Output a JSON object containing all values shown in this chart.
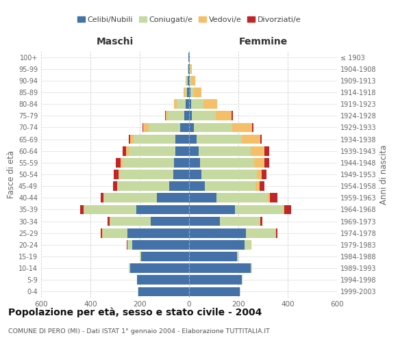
{
  "age_groups": [
    "0-4",
    "5-9",
    "10-14",
    "15-19",
    "20-24",
    "25-29",
    "30-34",
    "35-39",
    "40-44",
    "45-49",
    "50-54",
    "55-59",
    "60-64",
    "65-69",
    "70-74",
    "75-79",
    "80-84",
    "85-89",
    "90-94",
    "95-99",
    "100+"
  ],
  "birth_years": [
    "1999-2003",
    "1994-1998",
    "1989-1993",
    "1984-1988",
    "1979-1983",
    "1974-1978",
    "1969-1973",
    "1964-1968",
    "1959-1963",
    "1954-1958",
    "1949-1953",
    "1944-1948",
    "1939-1943",
    "1934-1938",
    "1929-1933",
    "1924-1928",
    "1919-1923",
    "1914-1918",
    "1909-1913",
    "1904-1908",
    "≤ 1903"
  ],
  "colors": {
    "celibi": "#4472a8",
    "coniugati": "#c5d9a0",
    "vedovi": "#f5bf6a",
    "divorziati": "#c0252a"
  },
  "maschi": {
    "celibi": [
      205,
      210,
      240,
      195,
      230,
      250,
      155,
      215,
      130,
      80,
      65,
      60,
      55,
      55,
      35,
      20,
      15,
      8,
      5,
      3,
      2
    ],
    "coniugati": [
      2,
      2,
      5,
      5,
      20,
      100,
      165,
      210,
      215,
      210,
      215,
      210,
      190,
      170,
      130,
      65,
      35,
      10,
      5,
      2,
      0
    ],
    "vedovi": [
      0,
      0,
      0,
      0,
      0,
      2,
      2,
      2,
      2,
      3,
      5,
      8,
      10,
      15,
      20,
      10,
      10,
      5,
      3,
      0,
      0
    ],
    "divorziati": [
      0,
      0,
      0,
      0,
      2,
      5,
      8,
      15,
      10,
      15,
      20,
      20,
      15,
      5,
      3,
      2,
      2,
      0,
      0,
      0,
      0
    ]
  },
  "femmine": {
    "celibi": [
      205,
      215,
      250,
      195,
      225,
      230,
      125,
      185,
      110,
      65,
      50,
      45,
      40,
      30,
      20,
      12,
      8,
      5,
      4,
      3,
      2
    ],
    "coniugati": [
      2,
      2,
      5,
      5,
      25,
      120,
      160,
      195,
      210,
      205,
      225,
      220,
      210,
      185,
      155,
      95,
      50,
      15,
      5,
      2,
      0
    ],
    "vedovi": [
      0,
      0,
      0,
      0,
      2,
      3,
      3,
      5,
      8,
      15,
      20,
      40,
      55,
      75,
      80,
      65,
      55,
      30,
      15,
      5,
      2
    ],
    "divorziati": [
      0,
      0,
      0,
      0,
      2,
      5,
      10,
      30,
      30,
      20,
      20,
      20,
      20,
      5,
      5,
      5,
      2,
      0,
      0,
      0,
      0
    ]
  },
  "xlim": 600,
  "title": "Popolazione per età, sesso e stato civile - 2004",
  "subtitle": "COMUNE DI PERO (MI) - Dati ISTAT 1° gennaio 2004 - Elaborazione TUTTITALIA.IT",
  "xlabel_left": "Maschi",
  "xlabel_right": "Femmine",
  "ylabel_left": "Fasce di età",
  "ylabel_right": "Anni di nascita",
  "legend_labels": [
    "Celibi/Nubili",
    "Coniugati/e",
    "Vedovi/e",
    "Divorziati/e"
  ],
  "background_color": "#ffffff",
  "bar_height": 0.8
}
